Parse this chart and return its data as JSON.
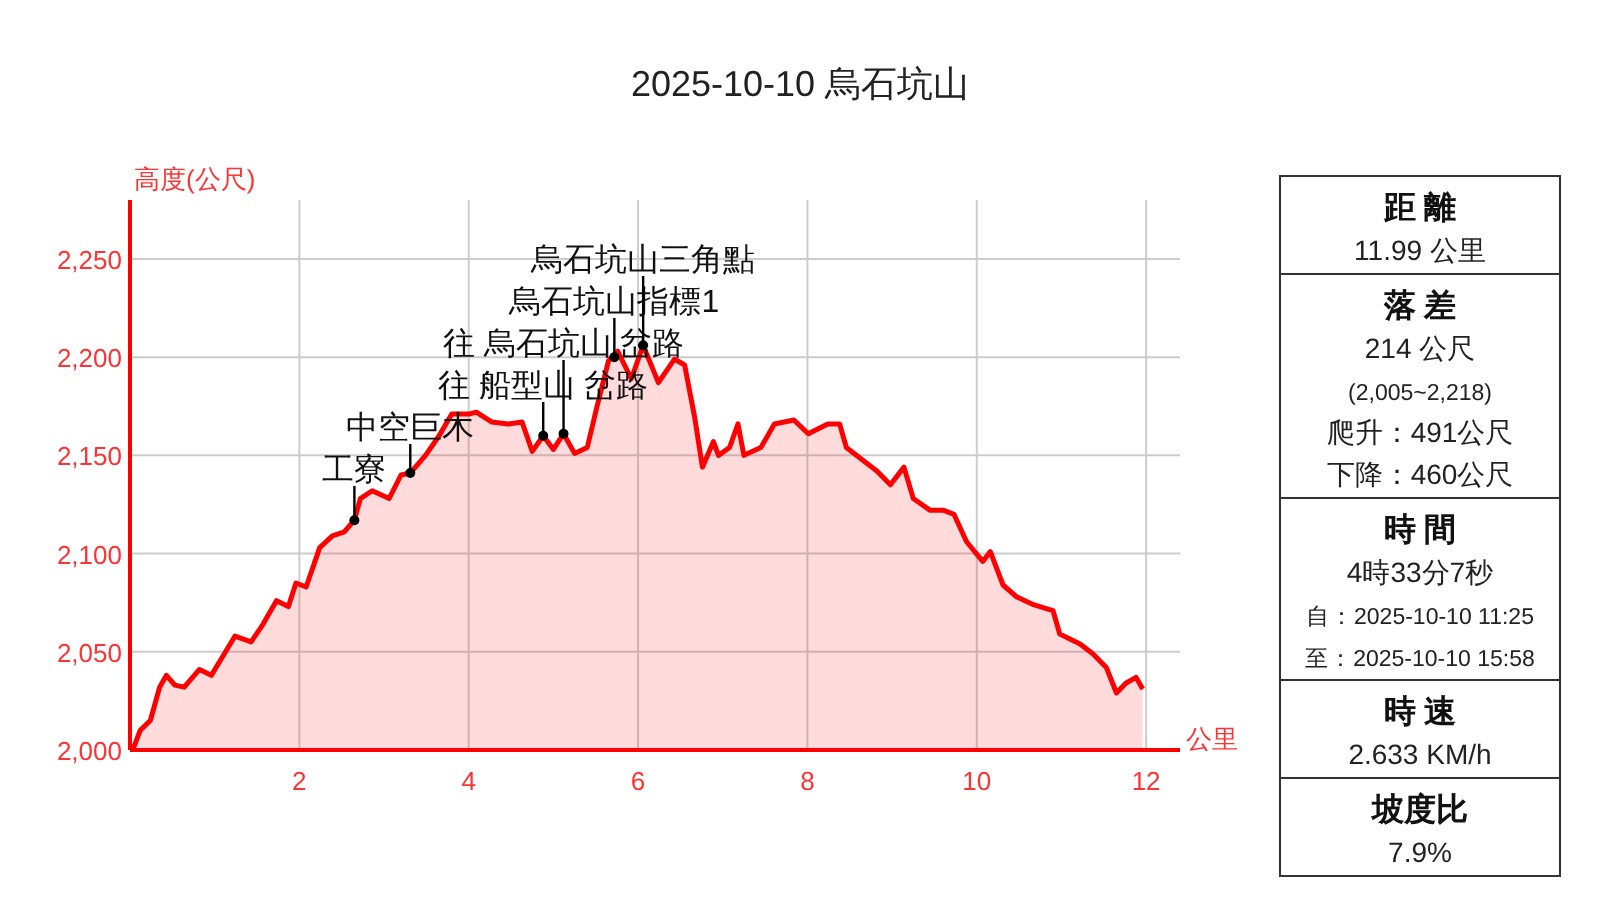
{
  "chart_data": [
    {
      "type": "area",
      "title": "2025-10-10 烏石坑山",
      "xlabel": "公里",
      "ylabel": "高度(公尺)",
      "x": [
        0.0,
        0.05,
        0.12,
        0.24,
        0.35,
        0.43,
        0.53,
        0.64,
        0.82,
        0.96,
        1.1,
        1.24,
        1.43,
        1.57,
        1.73,
        1.87,
        1.96,
        2.08,
        2.24,
        2.39,
        2.53,
        2.65,
        2.72,
        2.86,
        3.06,
        3.2,
        3.31,
        3.49,
        3.65,
        3.8,
        4.0,
        4.09,
        4.27,
        4.47,
        4.63,
        4.75,
        4.88,
        5.0,
        5.12,
        5.25,
        5.4,
        5.51,
        5.65,
        5.76,
        5.92,
        6.06,
        6.24,
        6.43,
        6.55,
        6.67,
        6.76,
        6.89,
        6.95,
        7.08,
        7.18,
        7.25,
        7.45,
        7.61,
        7.84,
        8.01,
        8.24,
        8.38,
        8.46,
        8.67,
        8.82,
        8.98,
        9.14,
        9.25,
        9.45,
        9.61,
        9.73,
        9.88,
        10.07,
        10.16,
        10.31,
        10.47,
        10.67,
        10.9,
        10.98,
        11.22,
        11.37,
        11.53,
        11.65,
        11.76,
        11.88,
        11.96
      ],
      "series": [
        {
          "color": "#ff0000",
          "values": [
            2000,
            2002,
            2010,
            2015,
            2032,
            2038,
            2033,
            2032,
            2041,
            2038,
            2048,
            2058,
            2055,
            2064,
            2076,
            2073,
            2085,
            2083,
            2103,
            2109,
            2111,
            2117,
            2128,
            2132,
            2128,
            2140,
            2141,
            2150,
            2160,
            2171,
            2171,
            2172,
            2167,
            2166,
            2167,
            2152,
            2160,
            2153,
            2161,
            2151,
            2154,
            2174,
            2198,
            2203,
            2189,
            2206,
            2187,
            2199,
            2196,
            2169,
            2144,
            2157,
            2150,
            2154,
            2166,
            2150,
            2154,
            2166,
            2168,
            2161,
            2166,
            2166,
            2154,
            2147,
            2142,
            2135,
            2144,
            2128,
            2122,
            2122,
            2120,
            2106,
            2096,
            2101,
            2084,
            2078,
            2074,
            2071,
            2059,
            2054,
            2049,
            2042,
            2029,
            2034,
            2037,
            2031
          ]
        }
      ],
      "xlim": [
        0,
        12.4
      ],
      "ylim": [
        2000,
        2280
      ],
      "xticks": [
        2,
        4,
        6,
        8,
        10,
        12
      ],
      "yticks": [
        {
          "value": 2000,
          "label": "2,000"
        },
        {
          "value": 2050,
          "label": "2,050"
        },
        {
          "value": 2100,
          "label": "2,100"
        },
        {
          "value": 2150,
          "label": "2,150"
        },
        {
          "value": 2200,
          "label": "2,200"
        },
        {
          "value": 2250,
          "label": "2,250"
        }
      ],
      "grid": true,
      "annotations": [
        {
          "text": "工寮",
          "x": 2.65,
          "y": 2117
        },
        {
          "text": "中空巨木",
          "x": 3.31,
          "y": 2141
        },
        {
          "text": "往 船型山 岔路",
          "x": 4.88,
          "y": 2160
        },
        {
          "text": "往 烏石坑山 岔路",
          "x": 5.12,
          "y": 2161
        },
        {
          "text": "烏石坑山指標1",
          "x": 5.72,
          "y": 2200
        },
        {
          "text": "烏石坑山三角點",
          "x": 6.06,
          "y": 2206
        }
      ]
    },
    {
      "type": "other",
      "title": "距 離",
      "annotations": [
        "11.99 公里"
      ]
    },
    {
      "type": "other",
      "title": "落 差",
      "annotations": [
        "214 公尺",
        "(2,005~2,218)",
        "爬升：491公尺",
        "下降：460公尺"
      ]
    },
    {
      "type": "other",
      "title": "時 間",
      "annotations": [
        "4時33分7秒",
        "自：2025-10-10 11:25",
        "至：2025-10-10 15:58"
      ]
    },
    {
      "type": "other",
      "title": "時 速",
      "annotations": [
        "2.633 KM/h"
      ]
    },
    {
      "type": "other",
      "title": "坡度比",
      "annotations": [
        "7.9%"
      ]
    }
  ]
}
